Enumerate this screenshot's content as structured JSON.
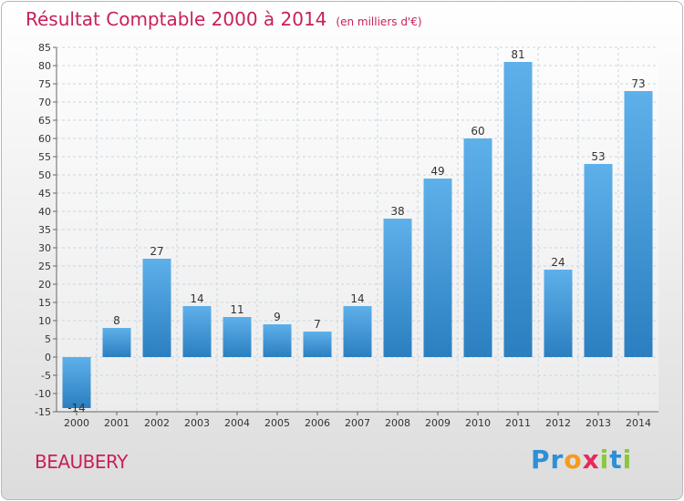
{
  "title": "Résultat Comptable 2000 à 2014",
  "subtitle": "(en milliers d'€)",
  "commune": "BEAUBERY",
  "logo": {
    "text": "Proxiti",
    "letters": [
      {
        "char": "P",
        "color": "#2e8fd6"
      },
      {
        "char": "r",
        "color": "#2e8fd6"
      },
      {
        "char": "o",
        "color": "#f59b1a"
      },
      {
        "char": "x",
        "color": "#e8295a"
      },
      {
        "char": "i",
        "color": "#8dc63f"
      },
      {
        "char": "t",
        "color": "#2e8fd6"
      },
      {
        "char": "i",
        "color": "#8dc63f"
      }
    ]
  },
  "colors": {
    "title": "#c8205a",
    "bar_light": "#5eb0ea",
    "bar_dark": "#2b7fc0",
    "grid": "#c7d6e2",
    "axis": "#666666",
    "text": "#333333"
  },
  "chart_data": {
    "type": "bar",
    "title": "Résultat Comptable 2000 à 2014",
    "subtitle": "(en milliers d'€)",
    "xlabel": "",
    "ylabel": "",
    "categories": [
      "2000",
      "2001",
      "2002",
      "2003",
      "2004",
      "2005",
      "2006",
      "2007",
      "2008",
      "2009",
      "2010",
      "2011",
      "2012",
      "2013",
      "2014"
    ],
    "values": [
      -14,
      8,
      27,
      14,
      11,
      9,
      7,
      14,
      38,
      49,
      60,
      81,
      24,
      53,
      73
    ],
    "labels": [
      "-14",
      "8",
      "27",
      "14",
      "11",
      "9",
      "7",
      "14",
      "38",
      "49",
      "60",
      "81",
      "24",
      "53",
      "73"
    ],
    "ylim": [
      -15,
      85
    ],
    "yticks": [
      -15,
      -10,
      -5,
      0,
      5,
      10,
      15,
      20,
      25,
      30,
      35,
      40,
      45,
      50,
      55,
      60,
      65,
      70,
      75,
      80,
      85
    ],
    "ytick_labels": [
      "-15",
      "-10",
      "-5",
      "0",
      "5",
      "10",
      "15",
      "20",
      "25",
      "30",
      "35",
      "40",
      "45",
      "50",
      "55",
      "60",
      "65",
      "70",
      "75",
      "80",
      "85"
    ],
    "grid": true,
    "legend": "none"
  }
}
